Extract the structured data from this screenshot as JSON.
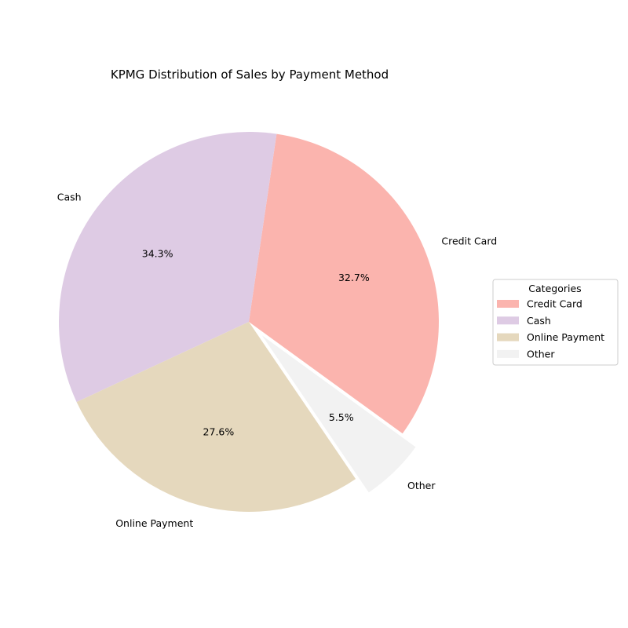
{
  "chart_data": {
    "type": "pie",
    "title": "KPMG Distribution of Sales by Payment Method",
    "categories": [
      "Credit Card",
      "Cash",
      "Online Payment",
      "Other"
    ],
    "values": [
      32.7,
      34.3,
      27.6,
      5.5
    ],
    "value_labels": [
      "32.7%",
      "34.3%",
      "27.6%",
      "5.5%"
    ],
    "colors": [
      "#fbb4ae",
      "#decbe4",
      "#e5d8bd",
      "#f2f2f2"
    ],
    "exploded": [
      false,
      false,
      false,
      true
    ],
    "start_angle_deg": -36,
    "direction": "counterclockwise",
    "legend": {
      "title": "Categories",
      "placement": "center-right",
      "entries": [
        "Credit Card",
        "Cash",
        "Online Payment",
        "Other"
      ]
    }
  }
}
